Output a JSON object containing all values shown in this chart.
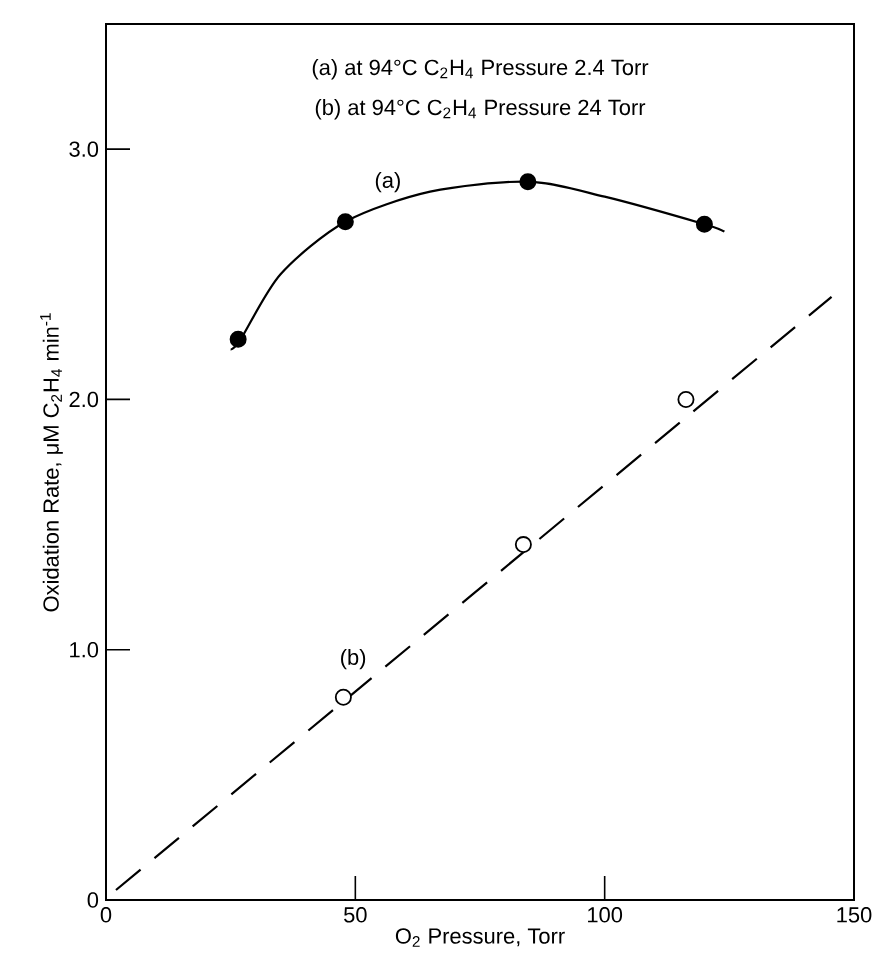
{
  "chart_data": {
    "type": "scatter",
    "xlabel": "O$_{2}$ Pressure, Torr",
    "ylabel": "Oxidation Rate, μM C$_{2}$H$_{4}$ min$^{-1}$",
    "xlim": [
      0,
      150
    ],
    "ylim": [
      0,
      3.5
    ],
    "xticks": [
      0,
      50,
      100,
      150
    ],
    "yticks": [
      0,
      {
        "value": 1,
        "label": "1.0"
      },
      {
        "value": 2,
        "label": "2.0"
      },
      {
        "value": 3,
        "label": "3.0"
      }
    ],
    "grid": false,
    "series": [
      {
        "marker": "circle",
        "color": "#000000",
        "x": [
          26.5,
          48,
          84.6,
          120
        ],
        "values": [
          2.24,
          2.71,
          2.87,
          2.7
        ]
      },
      {
        "marker": "circle",
        "color": "#ffffff",
        "x": [
          47.6,
          83.7,
          116.3
        ],
        "values": [
          0.81,
          1.42,
          2.0
        ]
      },
      {
        "type": "line",
        "name": "(a)",
        "line_style": "solid",
        "color": "#000000",
        "x": [
          25,
          27,
          35,
          48,
          65,
          84.6,
          100,
          120,
          124
        ],
        "values": [
          2.2,
          2.24,
          2.5,
          2.71,
          2.83,
          2.87,
          2.81,
          2.7,
          2.67
        ]
      },
      {
        "type": "line",
        "name": "(b)",
        "line_style": "dashed",
        "color": "#000000",
        "x": [
          2,
          145.5
        ],
        "values": [
          0.04,
          2.41
        ]
      }
    ],
    "annotations": [
      "(a) at 94°C C$_{2}$H$_{4}$ Pressure 2.4 Torr",
      "(b) at 94°C C$_{2}$H$_{4}$ Pressure 24 Torr"
    ]
  }
}
